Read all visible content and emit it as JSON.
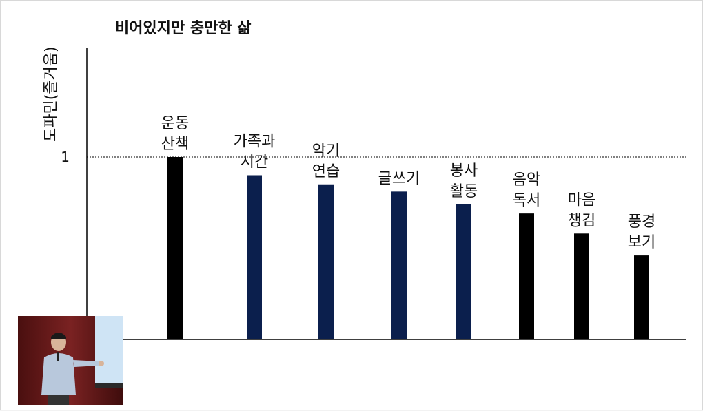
{
  "chart_data": {
    "type": "bar",
    "title": "비어있지만 충만한 삶",
    "ylabel": "도파민(즐거움)",
    "ytick_labels": [
      "1"
    ],
    "reference_line": 1,
    "ylim": [
      0,
      1.6
    ],
    "categories": [
      [
        "운동",
        "산책"
      ],
      [
        "가족과",
        "시간"
      ],
      [
        "악기",
        "연습"
      ],
      [
        "글쓰기"
      ],
      [
        "봉사",
        "활동"
      ],
      [
        "음악",
        "독서"
      ],
      [
        "마음",
        "챙김"
      ],
      [
        "풍경",
        "보기"
      ]
    ],
    "values": [
      1.0,
      0.9,
      0.85,
      0.81,
      0.74,
      0.69,
      0.58,
      0.46
    ],
    "bar_colors": [
      "#000000",
      "#0b1f4d",
      "#0b1f4d",
      "#0b1f4d",
      "#0b1f4d",
      "#000000",
      "#000000",
      "#000000"
    ],
    "grid": false
  },
  "colors": {
    "background": "#ffffff",
    "axis": "#000000",
    "highlight_bar": "#0b1f4d",
    "default_bar": "#000000"
  }
}
